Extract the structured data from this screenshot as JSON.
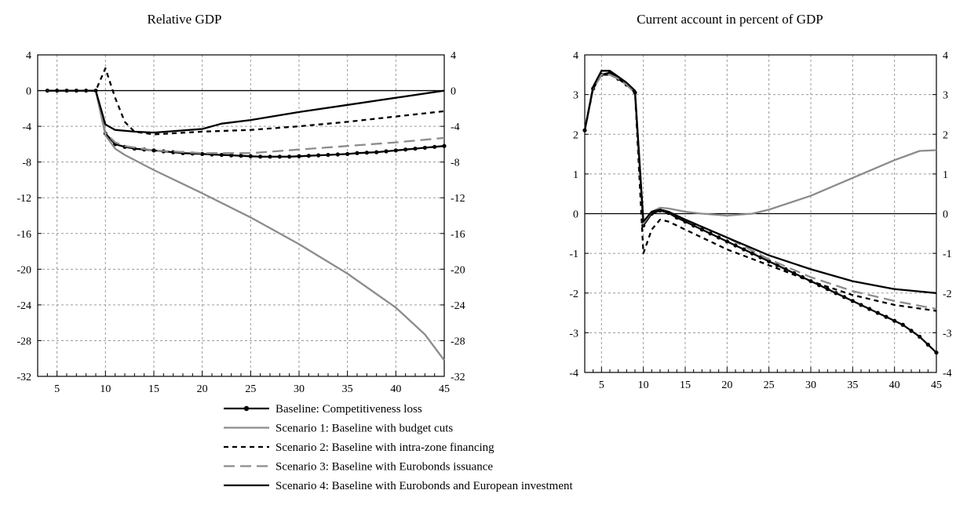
{
  "chart_data": [
    {
      "type": "line",
      "title": "Relative GDP",
      "xlabel": "",
      "ylabel": "",
      "xlim": [
        3,
        45
      ],
      "ylim": [
        -32,
        4
      ],
      "x_ticks": [
        5,
        10,
        15,
        20,
        25,
        30,
        35,
        40,
        45
      ],
      "y_ticks": [
        4,
        0,
        -4,
        -8,
        -12,
        -16,
        -20,
        -24,
        -28,
        -32
      ],
      "y_tick_labels": [
        "4",
        "0",
        "-4",
        "-8",
        "-12",
        "-16",
        "-20",
        "-24",
        "-28",
        "-32"
      ],
      "grid": true,
      "series": [
        {
          "name": "Baseline: Competitiveness loss",
          "color": "#000000",
          "style": "solid-dots",
          "points": [
            [
              4,
              0
            ],
            [
              5,
              0
            ],
            [
              6,
              0
            ],
            [
              7,
              0
            ],
            [
              8,
              0
            ],
            [
              9,
              0
            ],
            [
              10,
              -4.8
            ],
            [
              11,
              -6
            ],
            [
              12,
              -6.3
            ],
            [
              13,
              -6.5
            ],
            [
              14,
              -6.6
            ],
            [
              15,
              -6.7
            ],
            [
              16,
              -6.8
            ],
            [
              17,
              -6.9
            ],
            [
              18,
              -7
            ],
            [
              19,
              -7.05
            ],
            [
              20,
              -7.1
            ],
            [
              21,
              -7.15
            ],
            [
              22,
              -7.2
            ],
            [
              23,
              -7.25
            ],
            [
              24,
              -7.3
            ],
            [
              25,
              -7.35
            ],
            [
              26,
              -7.4
            ],
            [
              27,
              -7.4
            ],
            [
              28,
              -7.4
            ],
            [
              29,
              -7.4
            ],
            [
              30,
              -7.35
            ],
            [
              31,
              -7.3
            ],
            [
              32,
              -7.25
            ],
            [
              33,
              -7.2
            ],
            [
              34,
              -7.15
            ],
            [
              35,
              -7.1
            ],
            [
              36,
              -7.0
            ],
            [
              37,
              -6.95
            ],
            [
              38,
              -6.9
            ],
            [
              39,
              -6.8
            ],
            [
              40,
              -6.7
            ],
            [
              41,
              -6.6
            ],
            [
              42,
              -6.5
            ],
            [
              43,
              -6.4
            ],
            [
              44,
              -6.3
            ],
            [
              45,
              -6.2
            ]
          ]
        },
        {
          "name": "Scenario 1: Baseline with budget cuts",
          "color": "#8c8c8c",
          "style": "solid",
          "points": [
            [
              4,
              0
            ],
            [
              9,
              0
            ],
            [
              10,
              -5
            ],
            [
              11,
              -6.5
            ],
            [
              12,
              -7.2
            ],
            [
              15,
              -8.9
            ],
            [
              20,
              -11.5
            ],
            [
              25,
              -14.2
            ],
            [
              30,
              -17.2
            ],
            [
              35,
              -20.5
            ],
            [
              40,
              -24.3
            ],
            [
              43,
              -27.3
            ],
            [
              45,
              -30.2
            ]
          ]
        },
        {
          "name": "Scenario 2: Baseline with intra-zone financing",
          "color": "#000000",
          "style": "dashed",
          "points": [
            [
              4,
              0
            ],
            [
              9,
              0
            ],
            [
              10,
              2.5
            ],
            [
              11,
              -0.8
            ],
            [
              12,
              -3.5
            ],
            [
              13,
              -4.6
            ],
            [
              15,
              -4.9
            ],
            [
              20,
              -4.6
            ],
            [
              25,
              -4.4
            ],
            [
              30,
              -4.0
            ],
            [
              35,
              -3.5
            ],
            [
              40,
              -2.9
            ],
            [
              45,
              -2.3
            ]
          ]
        },
        {
          "name": "Scenario 3: Baseline with Eurobonds issuance",
          "color": "#8c8c8c",
          "style": "long-dash",
          "points": [
            [
              4,
              0
            ],
            [
              9,
              0
            ],
            [
              10,
              -4.7
            ],
            [
              11,
              -5.8
            ],
            [
              12,
              -6.2
            ],
            [
              15,
              -6.7
            ],
            [
              20,
              -7.0
            ],
            [
              25,
              -7.0
            ],
            [
              30,
              -6.6
            ],
            [
              35,
              -6.2
            ],
            [
              40,
              -5.8
            ],
            [
              45,
              -5.3
            ]
          ]
        },
        {
          "name": "Scenario 4: Baseline with Eurobonds and European investment",
          "color": "#000000",
          "style": "solid",
          "points": [
            [
              4,
              0
            ],
            [
              9,
              0
            ],
            [
              10,
              -3.8
            ],
            [
              11,
              -4.4
            ],
            [
              13,
              -4.6
            ],
            [
              15,
              -4.7
            ],
            [
              20,
              -4.3
            ],
            [
              22,
              -3.7
            ],
            [
              25,
              -3.3
            ],
            [
              30,
              -2.4
            ],
            [
              35,
              -1.6
            ],
            [
              40,
              -0.8
            ],
            [
              45,
              0
            ]
          ]
        }
      ]
    },
    {
      "type": "line",
      "title": "Current account in percent of GDP",
      "xlabel": "",
      "ylabel": "",
      "xlim": [
        3,
        45
      ],
      "ylim": [
        -4,
        4
      ],
      "x_ticks": [
        5,
        10,
        15,
        20,
        25,
        30,
        35,
        40,
        45
      ],
      "y_ticks": [
        4,
        3,
        2,
        1,
        0,
        -1,
        -2,
        -3,
        -4
      ],
      "y_tick_labels": [
        "4",
        "3",
        "2",
        "1",
        "0",
        "-1",
        "-2",
        "-3",
        "-4"
      ],
      "grid": true,
      "series": [
        {
          "name": "Baseline: Competitiveness loss",
          "color": "#000000",
          "style": "solid-dots",
          "points": [
            [
              3,
              2.1
            ],
            [
              4,
              3.15
            ],
            [
              5,
              3.5
            ],
            [
              6,
              3.55
            ],
            [
              7,
              3.4
            ],
            [
              8,
              3.25
            ],
            [
              9,
              3.05
            ],
            [
              10,
              -0.3
            ],
            [
              11,
              0.0
            ],
            [
              12,
              0.08
            ],
            [
              13,
              0.02
            ],
            [
              14,
              -0.1
            ],
            [
              15,
              -0.2
            ],
            [
              16,
              -0.3
            ],
            [
              17,
              -0.4
            ],
            [
              18,
              -0.5
            ],
            [
              19,
              -0.6
            ],
            [
              20,
              -0.7
            ],
            [
              21,
              -0.8
            ],
            [
              22,
              -0.9
            ],
            [
              23,
              -1.0
            ],
            [
              24,
              -1.1
            ],
            [
              25,
              -1.2
            ],
            [
              26,
              -1.3
            ],
            [
              27,
              -1.4
            ],
            [
              28,
              -1.5
            ],
            [
              29,
              -1.6
            ],
            [
              30,
              -1.7
            ],
            [
              31,
              -1.8
            ],
            [
              32,
              -1.9
            ],
            [
              33,
              -2.0
            ],
            [
              34,
              -2.1
            ],
            [
              35,
              -2.2
            ],
            [
              36,
              -2.3
            ],
            [
              37,
              -2.4
            ],
            [
              38,
              -2.5
            ],
            [
              39,
              -2.6
            ],
            [
              40,
              -2.7
            ],
            [
              41,
              -2.8
            ],
            [
              42,
              -2.95
            ],
            [
              43,
              -3.1
            ],
            [
              44,
              -3.3
            ],
            [
              45,
              -3.5
            ]
          ]
        },
        {
          "name": "Scenario 1: Baseline with budget cuts",
          "color": "#8c8c8c",
          "style": "solid",
          "points": [
            [
              3,
              2.1
            ],
            [
              4,
              3.15
            ],
            [
              5,
              3.5
            ],
            [
              6,
              3.5
            ],
            [
              7,
              3.4
            ],
            [
              8,
              3.25
            ],
            [
              9,
              3.05
            ],
            [
              10,
              -0.25
            ],
            [
              11,
              0.05
            ],
            [
              12,
              0.15
            ],
            [
              13,
              0.13
            ],
            [
              15,
              0.05
            ],
            [
              17,
              0.0
            ],
            [
              20,
              -0.05
            ],
            [
              23,
              0.0
            ],
            [
              25,
              0.1
            ],
            [
              30,
              0.45
            ],
            [
              35,
              0.9
            ],
            [
              40,
              1.35
            ],
            [
              43,
              1.58
            ],
            [
              45,
              1.6
            ]
          ]
        },
        {
          "name": "Scenario 2: Baseline with intra-zone financing",
          "color": "#000000",
          "style": "dashed",
          "points": [
            [
              3,
              2.1
            ],
            [
              4,
              3.15
            ],
            [
              5,
              3.5
            ],
            [
              6,
              3.5
            ],
            [
              7,
              3.4
            ],
            [
              8,
              3.25
            ],
            [
              9,
              3.05
            ],
            [
              10,
              -1.0
            ],
            [
              11,
              -0.4
            ],
            [
              12,
              -0.15
            ],
            [
              13,
              -0.2
            ],
            [
              15,
              -0.4
            ],
            [
              20,
              -0.9
            ],
            [
              25,
              -1.3
            ],
            [
              30,
              -1.7
            ],
            [
              35,
              -2.05
            ],
            [
              40,
              -2.3
            ],
            [
              45,
              -2.45
            ]
          ]
        },
        {
          "name": "Scenario 3: Baseline with Eurobonds issuance",
          "color": "#8c8c8c",
          "style": "long-dash",
          "points": [
            [
              3,
              2.1
            ],
            [
              4,
              3.15
            ],
            [
              5,
              3.5
            ],
            [
              6,
              3.5
            ],
            [
              7,
              3.4
            ],
            [
              8,
              3.25
            ],
            [
              9,
              3.05
            ],
            [
              10,
              -0.25
            ],
            [
              11,
              0.05
            ],
            [
              12,
              0.1
            ],
            [
              13,
              0.05
            ],
            [
              15,
              -0.15
            ],
            [
              20,
              -0.6
            ],
            [
              25,
              -1.15
            ],
            [
              30,
              -1.6
            ],
            [
              35,
              -1.95
            ],
            [
              40,
              -2.2
            ],
            [
              45,
              -2.4
            ]
          ]
        },
        {
          "name": "Scenario 4: Baseline with Eurobonds and European investment",
          "color": "#000000",
          "style": "solid",
          "points": [
            [
              3,
              2.1
            ],
            [
              4,
              3.2
            ],
            [
              5,
              3.6
            ],
            [
              6,
              3.6
            ],
            [
              7,
              3.45
            ],
            [
              8,
              3.3
            ],
            [
              9,
              3.1
            ],
            [
              10,
              -0.2
            ],
            [
              11,
              0.05
            ],
            [
              12,
              0.1
            ],
            [
              13,
              0.05
            ],
            [
              15,
              -0.15
            ],
            [
              20,
              -0.6
            ],
            [
              25,
              -1.05
            ],
            [
              30,
              -1.4
            ],
            [
              35,
              -1.7
            ],
            [
              40,
              -1.9
            ],
            [
              45,
              -2.0
            ]
          ]
        }
      ]
    }
  ],
  "legend": {
    "items": [
      {
        "label": "Baseline: Competitiveness loss",
        "color": "#000000",
        "style": "solid-dots"
      },
      {
        "label": "Scenario 1: Baseline with budget cuts",
        "color": "#8c8c8c",
        "style": "solid"
      },
      {
        "label": "Scenario 2: Baseline with intra-zone financing",
        "color": "#000000",
        "style": "dashed"
      },
      {
        "label": "Scenario 3: Baseline with Eurobonds issuance",
        "color": "#8c8c8c",
        "style": "long-dash"
      },
      {
        "label": "Scenario 4: Baseline with Eurobonds and European investment",
        "color": "#000000",
        "style": "solid"
      }
    ]
  }
}
